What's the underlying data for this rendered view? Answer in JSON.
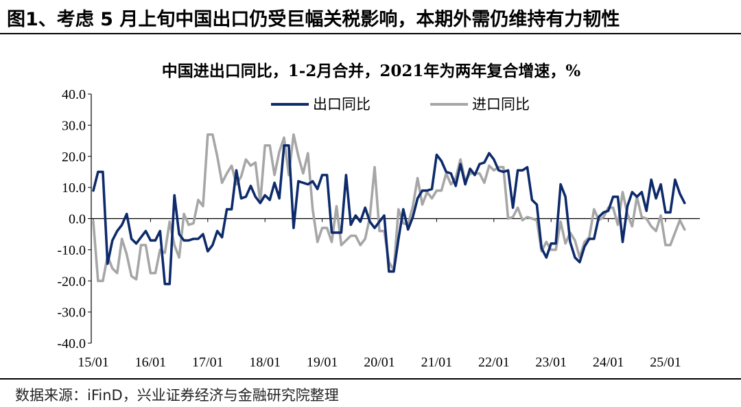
{
  "figure": {
    "title": "图1、考虑 5 月上旬中国出口仍受巨幅关税影响，本期外需仍维持有力韧性",
    "source": "数据来源：iFinD，兴业证券经济与金融研究院整理"
  },
  "chart_data": {
    "type": "line",
    "title": "中国进出口同比，1-2月合并，2021年为两年复合增速，%",
    "xlabel": "",
    "ylabel": "",
    "ylim": [
      -40,
      40
    ],
    "xlim": [
      "2015-01",
      "2025-05"
    ],
    "ytick_labels": [
      "40.0",
      "30.0",
      "20.0",
      "10.0",
      "0.0",
      "-10.0",
      "-20.0",
      "-30.0",
      "-40.0"
    ],
    "xtick_labels": [
      "15/01",
      "16/01",
      "17/01",
      "18/01",
      "19/01",
      "20/01",
      "21/01",
      "22/01",
      "23/01",
      "24/01",
      "25/01"
    ],
    "legend_position": "top",
    "grid": false,
    "series": [
      {
        "name": "出口同比",
        "color": "#0d2a6b",
        "points": [
          [
            "2015-01",
            9.0
          ],
          [
            "2015-02",
            15.0
          ],
          [
            "2015-03",
            15.0
          ],
          [
            "2015-04",
            -14.5
          ],
          [
            "2015-05",
            -7.0
          ],
          [
            "2015-06",
            -4.0
          ],
          [
            "2015-07",
            -2.0
          ],
          [
            "2015-08",
            1.5
          ],
          [
            "2015-09",
            -6.5
          ],
          [
            "2015-10",
            -8.0
          ],
          [
            "2015-11",
            -6.0
          ],
          [
            "2015-12",
            -4.0
          ],
          [
            "2016-01",
            -7.0
          ],
          [
            "2016-02",
            -7.0
          ],
          [
            "2016-03",
            -4.0
          ],
          [
            "2016-04",
            -21.0
          ],
          [
            "2016-05",
            -21.0
          ],
          [
            "2016-06",
            7.5
          ],
          [
            "2016-07",
            -5.0
          ],
          [
            "2016-08",
            -7.0
          ],
          [
            "2016-09",
            -7.0
          ],
          [
            "2016-10",
            -6.5
          ],
          [
            "2016-11",
            -6.5
          ],
          [
            "2016-12",
            -5.0
          ],
          [
            "2017-01",
            -10.5
          ],
          [
            "2017-02",
            -8.5
          ],
          [
            "2017-03",
            -4.0
          ],
          [
            "2017-04",
            -6.0
          ],
          [
            "2017-05",
            3.0
          ],
          [
            "2017-06",
            3.0
          ],
          [
            "2017-07",
            15.5
          ],
          [
            "2017-08",
            6.5
          ],
          [
            "2017-09",
            7.0
          ],
          [
            "2017-10",
            10.5
          ],
          [
            "2017-11",
            7.0
          ],
          [
            "2017-12",
            5.0
          ],
          [
            "2018-01",
            7.5
          ],
          [
            "2018-02",
            6.0
          ],
          [
            "2018-03",
            11.5
          ],
          [
            "2018-04",
            6.5
          ],
          [
            "2018-05",
            23.5
          ],
          [
            "2018-06",
            23.5
          ],
          [
            "2018-07",
            -3.0
          ],
          [
            "2018-08",
            12.0
          ],
          [
            "2018-09",
            11.5
          ],
          [
            "2018-10",
            11.0
          ],
          [
            "2018-11",
            12.0
          ],
          [
            "2018-12",
            9.5
          ],
          [
            "2019-01",
            14.0
          ],
          [
            "2019-02",
            14.0
          ],
          [
            "2019-03",
            -4.5
          ],
          [
            "2019-04",
            -4.5
          ],
          [
            "2019-05",
            -4.5
          ],
          [
            "2019-06",
            14.0
          ],
          [
            "2019-07",
            -2.0
          ],
          [
            "2019-08",
            1.0
          ],
          [
            "2019-09",
            -1.0
          ],
          [
            "2019-10",
            3.5
          ],
          [
            "2019-11",
            -1.0
          ],
          [
            "2019-12",
            -3.0
          ],
          [
            "2020-01",
            -1.0
          ],
          [
            "2020-02",
            1.0
          ],
          [
            "2020-03",
            -17.0
          ],
          [
            "2020-04",
            -17.0
          ],
          [
            "2020-05",
            -6.5
          ],
          [
            "2020-06",
            3.0
          ],
          [
            "2020-07",
            -3.5
          ],
          [
            "2020-08",
            0.5
          ],
          [
            "2020-09",
            6.5
          ],
          [
            "2020-10",
            9.0
          ],
          [
            "2020-11",
            9.0
          ],
          [
            "2020-12",
            9.5
          ],
          [
            "2021-01",
            20.5
          ],
          [
            "2021-02",
            18.5
          ],
          [
            "2021-03",
            15.0
          ],
          [
            "2021-04",
            14.5
          ],
          [
            "2021-05",
            10.5
          ],
          [
            "2021-06",
            17.5
          ],
          [
            "2021-07",
            11.0
          ],
          [
            "2021-08",
            16.0
          ],
          [
            "2021-09",
            14.0
          ],
          [
            "2021-10",
            17.5
          ],
          [
            "2021-11",
            18.0
          ],
          [
            "2021-12",
            21.0
          ],
          [
            "2022-01",
            19.0
          ],
          [
            "2022-02",
            15.5
          ],
          [
            "2022-03",
            15.0
          ],
          [
            "2022-04",
            15.5
          ],
          [
            "2022-05",
            3.5
          ],
          [
            "2022-06",
            15.5
          ],
          [
            "2022-07",
            15.5
          ],
          [
            "2022-08",
            16.5
          ],
          [
            "2022-09",
            6.0
          ],
          [
            "2022-10",
            4.5
          ],
          [
            "2022-11",
            -9.5
          ],
          [
            "2022-12",
            -12.5
          ],
          [
            "2023-01",
            -8.0
          ],
          [
            "2023-02",
            -8.0
          ],
          [
            "2023-03",
            11.0
          ],
          [
            "2023-04",
            7.0
          ],
          [
            "2023-05",
            -7.5
          ],
          [
            "2023-06",
            -12.5
          ],
          [
            "2023-07",
            -14.0
          ],
          [
            "2023-08",
            -9.0
          ],
          [
            "2023-09",
            -6.5
          ],
          [
            "2023-10",
            -6.5
          ],
          [
            "2023-11",
            0.5
          ],
          [
            "2023-12",
            2.0
          ],
          [
            "2024-01",
            2.5
          ],
          [
            "2024-02",
            7.0
          ],
          [
            "2024-03",
            7.0
          ],
          [
            "2024-04",
            -7.5
          ],
          [
            "2024-05",
            4.0
          ],
          [
            "2024-06",
            8.5
          ],
          [
            "2024-07",
            7.0
          ],
          [
            "2024-08",
            8.5
          ],
          [
            "2024-09",
            2.5
          ],
          [
            "2024-10",
            12.5
          ],
          [
            "2024-11",
            6.5
          ],
          [
            "2024-12",
            11.0
          ],
          [
            "2025-01",
            2.0
          ],
          [
            "2025-02",
            2.0
          ],
          [
            "2025-03",
            12.5
          ],
          [
            "2025-04",
            8.0
          ],
          [
            "2025-05",
            5.0
          ]
        ]
      },
      {
        "name": "进口同比",
        "color": "#a6a6a6",
        "points": [
          [
            "2015-01",
            -1.0
          ],
          [
            "2015-02",
            -20.0
          ],
          [
            "2015-03",
            -20.0
          ],
          [
            "2015-04",
            -12.0
          ],
          [
            "2015-05",
            -16.0
          ],
          [
            "2015-06",
            -17.5
          ],
          [
            "2015-07",
            -6.5
          ],
          [
            "2015-08",
            -11.5
          ],
          [
            "2015-09",
            -18.5
          ],
          [
            "2015-10",
            -19.5
          ],
          [
            "2015-11",
            -8.5
          ],
          [
            "2015-12",
            -8.5
          ],
          [
            "2016-01",
            -17.5
          ],
          [
            "2016-02",
            -17.5
          ],
          [
            "2016-03",
            -10.0
          ],
          [
            "2016-04",
            -11.0
          ],
          [
            "2016-05",
            -1.0
          ],
          [
            "2016-06",
            -8.5
          ],
          [
            "2016-07",
            -12.5
          ],
          [
            "2016-08",
            1.5
          ],
          [
            "2016-09",
            -2.0
          ],
          [
            "2016-10",
            -1.5
          ],
          [
            "2016-11",
            6.0
          ],
          [
            "2016-12",
            4.0
          ],
          [
            "2017-01",
            27.0
          ],
          [
            "2017-02",
            27.0
          ],
          [
            "2017-03",
            20.0
          ],
          [
            "2017-04",
            11.5
          ],
          [
            "2017-05",
            14.5
          ],
          [
            "2017-06",
            17.0
          ],
          [
            "2017-07",
            11.0
          ],
          [
            "2017-08",
            13.5
          ],
          [
            "2017-09",
            19.0
          ],
          [
            "2017-10",
            17.0
          ],
          [
            "2017-11",
            18.0
          ],
          [
            "2017-12",
            5.0
          ],
          [
            "2018-01",
            23.5
          ],
          [
            "2018-02",
            23.5
          ],
          [
            "2018-03",
            14.0
          ],
          [
            "2018-04",
            21.5
          ],
          [
            "2018-05",
            26.0
          ],
          [
            "2018-06",
            14.0
          ],
          [
            "2018-07",
            27.0
          ],
          [
            "2018-08",
            20.0
          ],
          [
            "2018-09",
            14.5
          ],
          [
            "2018-10",
            21.0
          ],
          [
            "2018-11",
            3.0
          ],
          [
            "2018-12",
            -7.5
          ],
          [
            "2019-01",
            -3.0
          ],
          [
            "2019-02",
            -3.0
          ],
          [
            "2019-03",
            -7.5
          ],
          [
            "2019-04",
            4.0
          ],
          [
            "2019-05",
            -8.5
          ],
          [
            "2019-06",
            -7.0
          ],
          [
            "2019-07",
            -5.5
          ],
          [
            "2019-08",
            -5.5
          ],
          [
            "2019-09",
            -8.5
          ],
          [
            "2019-10",
            -6.5
          ],
          [
            "2019-11",
            0.5
          ],
          [
            "2019-12",
            16.5
          ],
          [
            "2020-01",
            -4.0
          ],
          [
            "2020-02",
            -4.0
          ],
          [
            "2020-03",
            -14.0
          ],
          [
            "2020-04",
            -16.5
          ],
          [
            "2020-05",
            3.0
          ],
          [
            "2020-06",
            -1.5
          ],
          [
            "2020-07",
            -2.0
          ],
          [
            "2020-08",
            4.0
          ],
          [
            "2020-09",
            13.0
          ],
          [
            "2020-10",
            4.5
          ],
          [
            "2020-11",
            8.5
          ],
          [
            "2020-12",
            6.5
          ],
          [
            "2021-01",
            9.0
          ],
          [
            "2021-02",
            9.0
          ],
          [
            "2021-03",
            14.5
          ],
          [
            "2021-04",
            11.0
          ],
          [
            "2021-05",
            13.0
          ],
          [
            "2021-06",
            19.0
          ],
          [
            "2021-07",
            12.0
          ],
          [
            "2021-08",
            14.5
          ],
          [
            "2021-09",
            14.5
          ],
          [
            "2021-10",
            14.5
          ],
          [
            "2021-11",
            11.5
          ],
          [
            "2021-12",
            17.0
          ],
          [
            "2022-01",
            15.5
          ],
          [
            "2022-02",
            16.5
          ],
          [
            "2022-03",
            16.5
          ],
          [
            "2022-04",
            0.0
          ],
          [
            "2022-05",
            0.5
          ],
          [
            "2022-06",
            3.5
          ],
          [
            "2022-07",
            -0.5
          ],
          [
            "2022-08",
            0.5
          ],
          [
            "2022-09",
            0.0
          ],
          [
            "2022-10",
            -0.5
          ],
          [
            "2022-11",
            -10.5
          ],
          [
            "2022-12",
            -7.5
          ],
          [
            "2023-01",
            -10.0
          ],
          [
            "2023-02",
            -10.0
          ],
          [
            "2023-03",
            -1.0
          ],
          [
            "2023-04",
            -8.0
          ],
          [
            "2023-05",
            -4.5
          ],
          [
            "2023-06",
            -7.0
          ],
          [
            "2023-07",
            -12.5
          ],
          [
            "2023-08",
            -7.5
          ],
          [
            "2023-09",
            -6.0
          ],
          [
            "2023-10",
            3.0
          ],
          [
            "2023-11",
            -0.5
          ],
          [
            "2023-12",
            0.5
          ],
          [
            "2024-01",
            3.5
          ],
          [
            "2024-02",
            3.5
          ],
          [
            "2024-03",
            -2.0
          ],
          [
            "2024-04",
            8.5
          ],
          [
            "2024-05",
            1.5
          ],
          [
            "2024-06",
            -2.5
          ],
          [
            "2024-07",
            7.0
          ],
          [
            "2024-08",
            0.5
          ],
          [
            "2024-09",
            0.0
          ],
          [
            "2024-10",
            -2.5
          ],
          [
            "2024-11",
            -4.0
          ],
          [
            "2024-12",
            1.0
          ],
          [
            "2025-01",
            -8.5
          ],
          [
            "2025-02",
            -8.5
          ],
          [
            "2025-03",
            -4.5
          ],
          [
            "2025-04",
            -0.5
          ],
          [
            "2025-05",
            -3.5
          ]
        ]
      }
    ]
  }
}
